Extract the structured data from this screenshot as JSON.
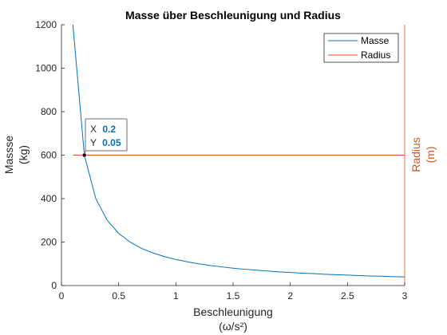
{
  "chart_data": {
    "type": "line",
    "title": "Masse über Beschleunigung und Radius",
    "xlabel": [
      "Beschleunigung",
      "(ω/s²)"
    ],
    "ylabel_left": [
      "Massse",
      "(kg)"
    ],
    "ylabel_right": [
      "Radius",
      "(m)"
    ],
    "xlim": [
      0,
      3
    ],
    "ylim_left": [
      0,
      1200
    ],
    "x_ticks": [
      "0",
      "0.5",
      "1",
      "1.5",
      "2",
      "2.5",
      "3"
    ],
    "y_ticks_left": [
      "0",
      "200",
      "400",
      "600",
      "800",
      "1000",
      "1200"
    ],
    "grid": false,
    "legend_placement": "top-right",
    "series": [
      {
        "name": "Masse",
        "axis": "left",
        "color": "#0072bd",
        "x": [
          0.1,
          0.2,
          0.3,
          0.4,
          0.5,
          0.6,
          0.7,
          0.8,
          0.9,
          1.0,
          1.1,
          1.2,
          1.3,
          1.4,
          1.5,
          1.6,
          1.7,
          1.8,
          1.9,
          2.0,
          2.1,
          2.2,
          2.3,
          2.4,
          2.5,
          2.6,
          2.7,
          2.8,
          2.9,
          3.0
        ],
        "y": [
          1200,
          600,
          400,
          300,
          240,
          200,
          171,
          150,
          133,
          120,
          109,
          100,
          92,
          86,
          80,
          75,
          71,
          67,
          63,
          60,
          57,
          55,
          52,
          50,
          48,
          46,
          44,
          43,
          41,
          40
        ]
      },
      {
        "name": "Radius",
        "axis": "right",
        "color": "#d95319",
        "x": [
          0.1,
          3.0
        ],
        "y_plot_level": [
          600,
          600
        ]
      }
    ],
    "datatip": {
      "x_label": "X",
      "x_value": "0.2",
      "y_label": "Y",
      "y_value": "0.05",
      "x": 0.2,
      "y": 600
    }
  }
}
